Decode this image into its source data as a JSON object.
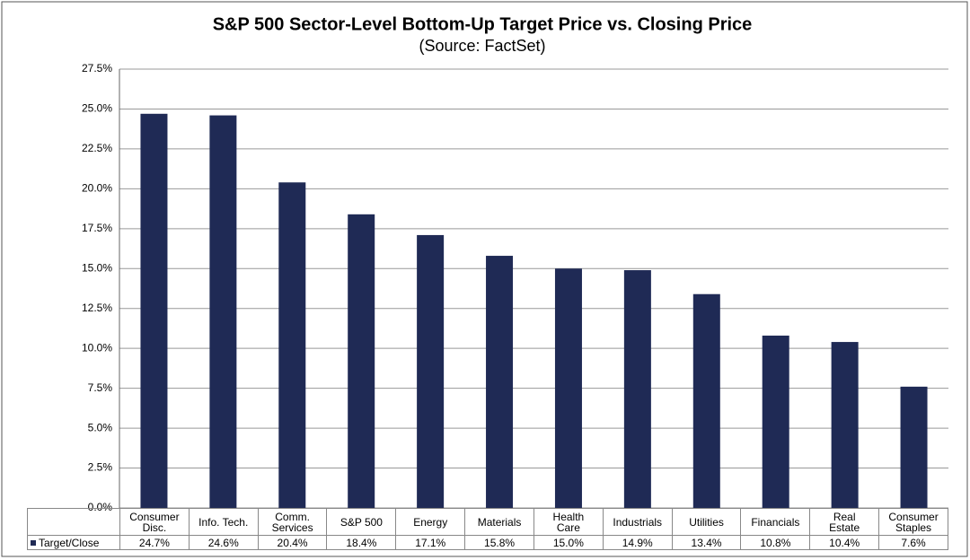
{
  "chart_data": {
    "type": "bar",
    "title": "S&P 500 Sector-Level Bottom-Up Target Price vs. Closing Price",
    "subtitle": "(Source: FactSet)",
    "categories": [
      "Consumer\nDisc.",
      "Info. Tech.",
      "Comm.\nServices",
      "S&P 500",
      "Energy",
      "Materials",
      "Health\nCare",
      "Industrials",
      "Utilities",
      "Financials",
      "Real\nEstate",
      "Consumer\nStaples"
    ],
    "series": [
      {
        "name": "Target/Close",
        "color": "#1f2a55",
        "values": [
          24.7,
          24.6,
          20.4,
          18.4,
          17.1,
          15.8,
          15.0,
          14.9,
          13.4,
          10.8,
          10.4,
          7.6
        ],
        "value_labels": [
          "24.7%",
          "24.6%",
          "20.4%",
          "18.4%",
          "17.1%",
          "15.8%",
          "15.0%",
          "14.9%",
          "13.4%",
          "10.8%",
          "10.4%",
          "7.6%"
        ]
      }
    ],
    "ylim": [
      0,
      27.5
    ],
    "yticks": [
      {
        "value": 0,
        "label": "0.0%"
      },
      {
        "value": 2.5,
        "label": "2.5%"
      },
      {
        "value": 5,
        "label": "5.0%"
      },
      {
        "value": 7.5,
        "label": "7.5%"
      },
      {
        "value": 10,
        "label": "10.0%"
      },
      {
        "value": 12.5,
        "label": "12.5%"
      },
      {
        "value": 15,
        "label": "15.0%"
      },
      {
        "value": 17.5,
        "label": "17.5%"
      },
      {
        "value": 20,
        "label": "20.0%"
      },
      {
        "value": 22.5,
        "label": "22.5%"
      },
      {
        "value": 25,
        "label": "25.0%"
      },
      {
        "value": 27.5,
        "label": "27.5%"
      }
    ],
    "grid": true
  }
}
